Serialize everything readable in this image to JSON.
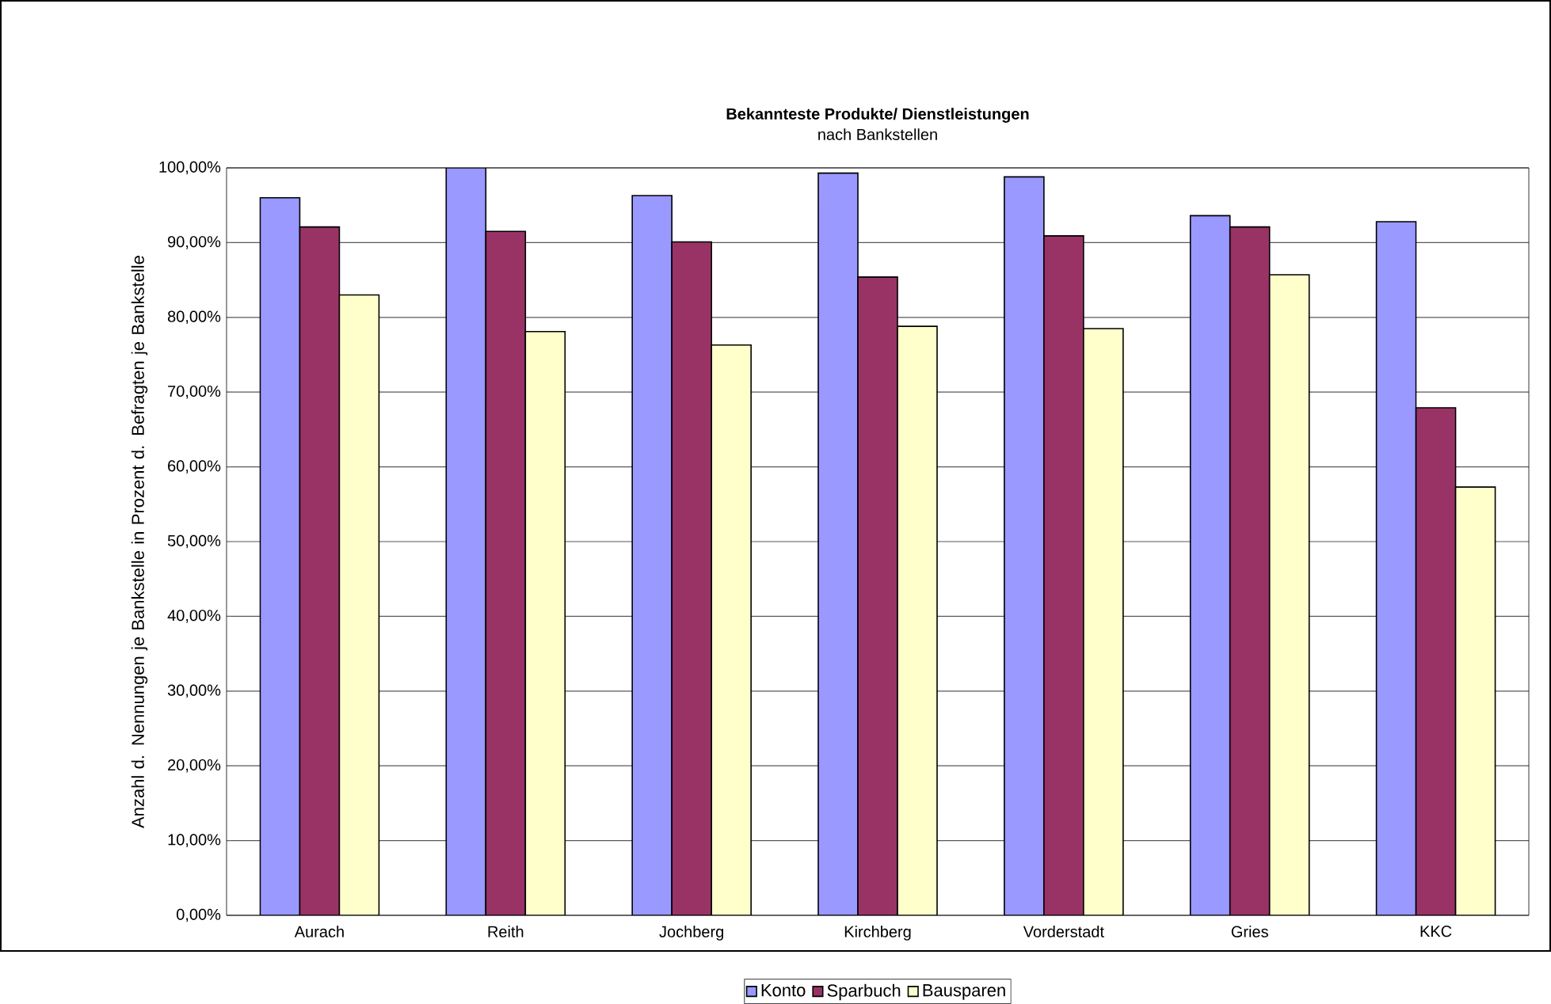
{
  "chart_data": {
    "type": "bar",
    "title": "Bekannteste Produkte/ Dienstleistungen",
    "subtitle": "nach Bankstellen",
    "ylabel": "Anzahl d. Nennungen je Bankstelle in Prozent d. Befragten je Bankstelle",
    "categories": [
      "Aurach",
      "Reith",
      "Jochberg",
      "Kirchberg",
      "Vorderstadt",
      "Gries",
      "KKC"
    ],
    "series": [
      {
        "name": "Konto",
        "color": "#9999ff",
        "values": [
          96.0,
          100.0,
          96.3,
          99.3,
          98.8,
          93.6,
          92.8
        ]
      },
      {
        "name": "Sparbuch",
        "color": "#993366",
        "values": [
          92.1,
          91.5,
          90.1,
          85.4,
          90.9,
          92.1,
          67.9
        ]
      },
      {
        "name": "Bausparen",
        "color": "#ffffcc",
        "values": [
          83.0,
          78.1,
          76.3,
          78.8,
          78.5,
          85.7,
          57.3
        ]
      }
    ],
    "ylim": [
      0,
      100
    ],
    "yticks": [
      {
        "value": 0,
        "label": "0,00%"
      },
      {
        "value": 10,
        "label": "10,00%"
      },
      {
        "value": 20,
        "label": "20,00%"
      },
      {
        "value": 30,
        "label": "30,00%"
      },
      {
        "value": 40,
        "label": "40,00%"
      },
      {
        "value": 50,
        "label": "50,00%"
      },
      {
        "value": 60,
        "label": "60,00%"
      },
      {
        "value": 70,
        "label": "70,00%"
      },
      {
        "value": 80,
        "label": "80,00%"
      },
      {
        "value": 90,
        "label": "90,00%"
      },
      {
        "value": 100,
        "label": "100,00%"
      }
    ],
    "grid": "y",
    "legend": "bottom"
  }
}
